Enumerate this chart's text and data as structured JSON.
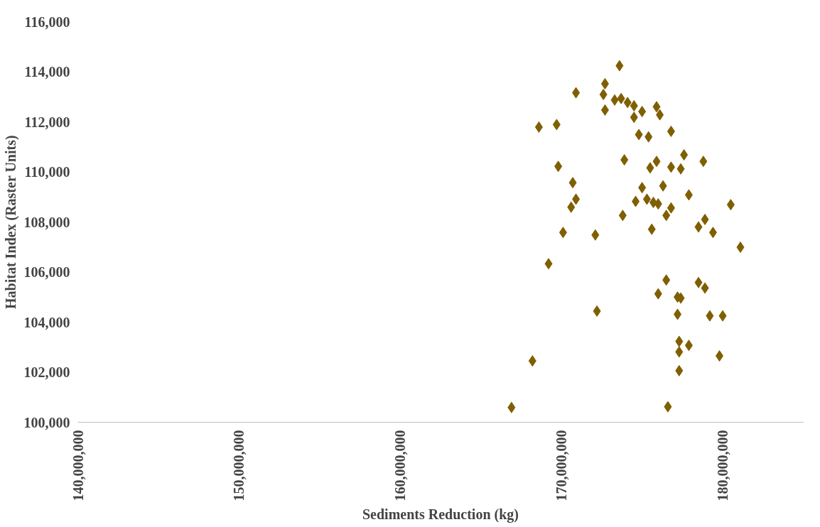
{
  "chart_data": {
    "type": "scatter",
    "xlabel": "Sediments Reduction (kg)",
    "ylabel": "Habitat Index (Raster Units)",
    "marker": "diamond",
    "grid": false,
    "xlim": [
      140000000,
      185000000
    ],
    "xticks": [
      {
        "value": 140000000,
        "label": "140,000,000"
      },
      {
        "value": 150000000,
        "label": "150,000,000"
      },
      {
        "value": 160000000,
        "label": "160,000,000"
      },
      {
        "value": 170000000,
        "label": "170,000,000"
      },
      {
        "value": 180000000,
        "label": "180,000,000"
      }
    ],
    "ylim": [
      100000,
      116000
    ],
    "yticks": [
      {
        "value": 100000,
        "label": "100,000"
      },
      {
        "value": 102000,
        "label": "102,000"
      },
      {
        "value": 104000,
        "label": "104,000"
      },
      {
        "value": 106000,
        "label": "106,000"
      },
      {
        "value": 108000,
        "label": "108,000"
      },
      {
        "value": 110000,
        "label": "110,000"
      },
      {
        "value": 112000,
        "label": "112,000"
      },
      {
        "value": 114000,
        "label": "114,000"
      },
      {
        "value": 116000,
        "label": "116,000"
      }
    ],
    "series": [
      {
        "color": "#7f5f00",
        "x": [
          173600000,
          172700000,
          170900000,
          172600000,
          173300000,
          173700000,
          174100000,
          174500000,
          175000000,
          174500000,
          175900000,
          176100000,
          172700000,
          168600000,
          169700000,
          174800000,
          175400000,
          176800000,
          173900000,
          175900000,
          175500000,
          176800000,
          177400000,
          177600000,
          178800000,
          169800000,
          170700000,
          175000000,
          176300000,
          177900000,
          170900000,
          170600000,
          174600000,
          175300000,
          175700000,
          176000000,
          176800000,
          176500000,
          173800000,
          180500000,
          178900000,
          178500000,
          179400000,
          170100000,
          172100000,
          175600000,
          181100000,
          169200000,
          176500000,
          176000000,
          178500000,
          178900000,
          177200000,
          177400000,
          172200000,
          177200000,
          179200000,
          180000000,
          177300000,
          177900000,
          177300000,
          179800000,
          168200000,
          177300000,
          166900000,
          176600000
        ],
        "values": [
          114240,
          113520,
          113160,
          113090,
          112870,
          112930,
          112770,
          112640,
          112410,
          112180,
          112600,
          112280,
          112470,
          111790,
          111890,
          111490,
          111400,
          111620,
          110480,
          110420,
          110160,
          110190,
          110120,
          110680,
          110420,
          110220,
          109570,
          109370,
          109440,
          109080,
          108910,
          108590,
          108820,
          108910,
          108780,
          108720,
          108560,
          108260,
          108260,
          108690,
          108100,
          107800,
          107580,
          107580,
          107480,
          107710,
          106990,
          106330,
          105680,
          105130,
          105580,
          105360,
          105000,
          104960,
          104440,
          104310,
          104250,
          104250,
          103230,
          103070,
          102810,
          102650,
          102450,
          102060,
          100590,
          100620
        ]
      }
    ]
  }
}
